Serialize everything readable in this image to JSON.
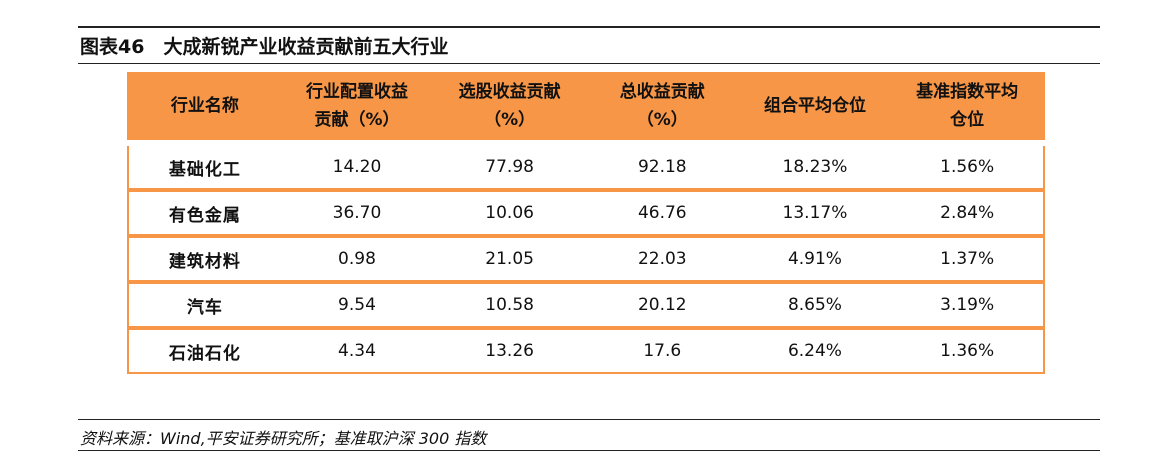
{
  "header": {
    "title": "图表46　大成新锐产业收益贡献前五大行业"
  },
  "table": {
    "columns": [
      [
        "行业名称"
      ],
      [
        "行业配置收益",
        "贡献（%）"
      ],
      [
        "选股收益贡献",
        "（%）"
      ],
      [
        "总收益贡献",
        "（%）"
      ],
      [
        "组合平均仓位"
      ],
      [
        "基准指数平均",
        "仓位"
      ]
    ],
    "rows": [
      [
        "基础化工",
        "14.20",
        "77.98",
        "92.18",
        "18.23%",
        "1.56%"
      ],
      [
        "有色金属",
        "36.70",
        "10.06",
        "46.76",
        "13.17%",
        "2.84%"
      ],
      [
        "建筑材料",
        "0.98",
        "21.05",
        "22.03",
        "4.91%",
        "1.37%"
      ],
      [
        "汽车",
        "9.54",
        "10.58",
        "20.12",
        "8.65%",
        "3.19%"
      ],
      [
        "石油石化",
        "4.34",
        "13.26",
        "17.6",
        "6.24%",
        "1.36%"
      ]
    ]
  },
  "footer": {
    "source": "资料来源：Wind,平安证券研究所；基准取沪深 300 指数"
  }
}
